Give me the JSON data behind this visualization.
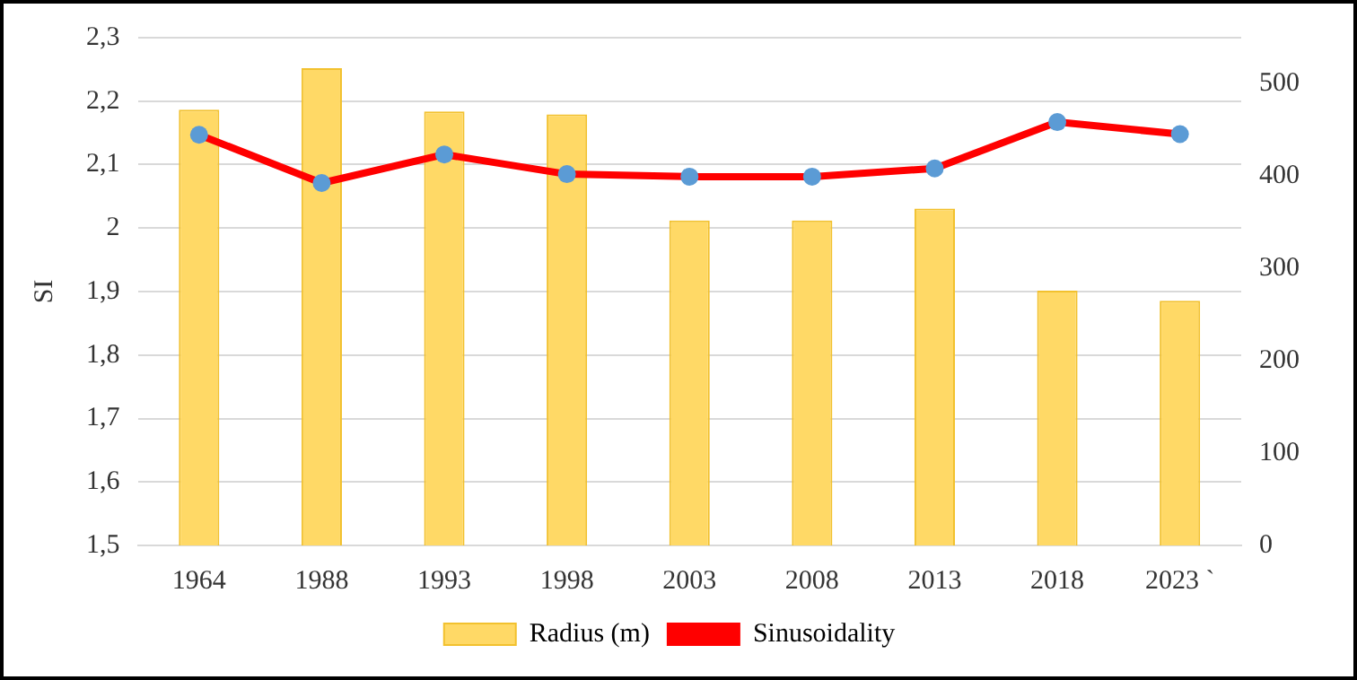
{
  "chart_data": {
    "type": "bar",
    "ylabel": "SI",
    "categories": [
      "1964",
      "1988",
      "1993",
      "1998",
      "2003",
      "2008",
      "2013",
      "2018",
      "2023 `"
    ],
    "series": [
      {
        "name": "Radius (m)",
        "axis": "y2",
        "color": "#ffd966",
        "values": [
          472,
          517,
          470,
          467,
          352,
          352,
          365,
          276,
          265
        ]
      },
      {
        "name": "Sinusoidality",
        "type": "line",
        "axis": "y",
        "color": "#ff0000",
        "marker": "circle",
        "values": [
          2.147,
          2.071,
          2.116,
          2.085,
          2.081,
          2.081,
          2.094,
          2.167,
          2.148
        ]
      }
    ],
    "ylim": [
      1.5,
      2.3
    ],
    "yticks": [
      {
        "value": 1.5,
        "label": "1,5"
      },
      {
        "value": 1.6,
        "label": "1,6"
      },
      {
        "value": 1.7,
        "label": "1,7"
      },
      {
        "value": 1.8,
        "label": "1,8"
      },
      {
        "value": 1.9,
        "label": "1,9"
      },
      2,
      {
        "value": 2.1,
        "label": "2,1"
      },
      {
        "value": 2.2,
        "label": "2,2"
      },
      {
        "value": 2.3,
        "label": "2,3"
      }
    ],
    "y2lim": [
      0,
      550
    ],
    "y2ticks": [
      0,
      100,
      200,
      300,
      400,
      500
    ],
    "grid": "y",
    "legend": "bottom"
  }
}
